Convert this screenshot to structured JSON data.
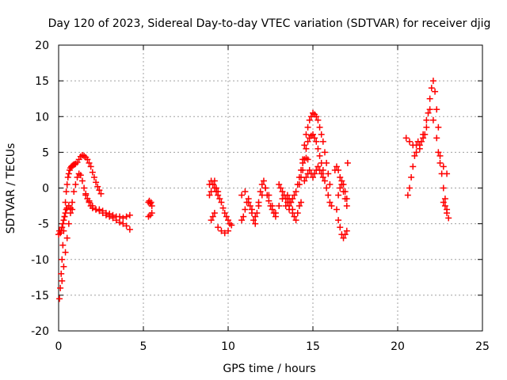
{
  "chart_data": {
    "type": "scatter",
    "title": "Day 120 of 2023, Sidereal Day-to-day VTEC variation (SDTVAR) for receiver djig",
    "xlabel": "GPS time / hours",
    "ylabel": "SDTVAR / TECUs",
    "xlim": [
      0,
      25
    ],
    "ylim": [
      -20,
      20
    ],
    "xticks": [
      0,
      5,
      10,
      15,
      20,
      25
    ],
    "yticks": [
      -20,
      -15,
      -10,
      -5,
      0,
      5,
      10,
      15,
      20
    ],
    "grid": true,
    "marker": "+",
    "series": [
      {
        "name": "SDTVAR",
        "color": "#ff0000",
        "segments": [
          {
            "x": [
              0.0,
              0.05,
              0.1,
              0.15,
              0.2,
              0.25,
              0.3,
              0.35,
              0.4,
              0.45,
              0.5,
              0.55,
              0.6,
              0.65,
              0.7,
              0.75,
              0.8,
              0.85,
              0.9,
              0.95,
              1.0,
              1.1,
              1.2,
              1.3,
              1.4,
              1.5,
              1.6,
              1.7,
              1.8,
              1.9,
              2.0,
              2.1,
              2.2,
              2.3,
              2.4,
              2.5
            ],
            "y": [
              -6.5,
              -15.5,
              -14.0,
              -12.0,
              -10.0,
              -8.0,
              -6.0,
              -4.0,
              -2.0,
              -0.5,
              0.5,
              1.5,
              2.0,
              2.5,
              2.8,
              3.0,
              3.1,
              3.2,
              3.3,
              3.3,
              3.4,
              3.6,
              4.0,
              4.4,
              4.6,
              4.5,
              4.3,
              4.0,
              3.5,
              3.0,
              2.2,
              1.5,
              0.8,
              0.2,
              -0.3,
              -0.8
            ]
          },
          {
            "x": [
              0.2,
              0.3,
              0.4,
              0.5,
              0.6,
              0.7,
              0.8,
              0.9,
              1.0,
              1.1,
              1.2,
              1.3,
              1.4,
              1.5,
              1.6,
              1.7,
              1.8,
              1.9,
              2.0,
              2.2,
              2.4,
              2.6,
              2.8,
              3.0,
              3.2,
              3.4,
              3.6,
              3.8,
              4.0,
              4.2
            ],
            "y": [
              -13.0,
              -11.0,
              -9.0,
              -7.0,
              -5.0,
              -3.5,
              -2.0,
              -0.5,
              0.5,
              1.5,
              2.0,
              1.8,
              1.0,
              0.0,
              -0.8,
              -1.5,
              -2.0,
              -2.5,
              -2.8,
              -3.0,
              -3.2,
              -3.5,
              -3.8,
              -4.0,
              -4.2,
              -4.5,
              -4.8,
              -5.0,
              -5.3,
              -5.8
            ]
          },
          {
            "x": [
              0.05,
              0.1,
              0.15,
              0.2,
              0.25,
              0.3,
              0.35,
              0.4,
              0.45,
              0.5,
              0.6,
              0.7,
              0.8
            ],
            "y": [
              -6.0,
              -6.3,
              -6.0,
              -5.5,
              -5.0,
              -4.5,
              -4.0,
              -3.5,
              -3.0,
              -2.8,
              -2.5,
              -2.8,
              -3.0
            ]
          },
          {
            "x": [
              1.6,
              1.8,
              2.0,
              2.2,
              2.4,
              2.6,
              2.8,
              3.0,
              3.2,
              3.4,
              3.6,
              3.8,
              4.0,
              4.2
            ],
            "y": [
              -1.0,
              -1.8,
              -2.5,
              -3.0,
              -3.0,
              -3.2,
              -3.5,
              -3.6,
              -3.8,
              -4.0,
              -4.0,
              -4.2,
              -4.0,
              -3.8
            ]
          },
          {
            "x": [
              5.3,
              5.35,
              5.4,
              5.45,
              5.5,
              5.3,
              5.4,
              5.5
            ],
            "y": [
              -2.0,
              -1.8,
              -2.2,
              -2.0,
              -2.5,
              -4.0,
              -3.8,
              -3.5
            ]
          },
          {
            "x": [
              8.9,
              9.0,
              9.1,
              9.2,
              9.3,
              9.4,
              9.5,
              9.6,
              9.7,
              9.8,
              9.9,
              10.0,
              10.1,
              10.2,
              9.0,
              9.1,
              9.2,
              9.4,
              9.6,
              9.8,
              10.0
            ],
            "y": [
              0.5,
              1.0,
              0.5,
              0.0,
              -0.5,
              -1.0,
              -1.5,
              -2.0,
              -2.8,
              -3.5,
              -4.0,
              -4.5,
              -5.0,
              -5.2,
              -4.5,
              -4.0,
              -3.5,
              -5.5,
              -6.0,
              -6.3,
              -6.0
            ]
          },
          {
            "x": [
              8.9,
              9.0,
              9.1,
              9.2,
              9.3,
              9.4
            ],
            "y": [
              -1.0,
              -0.5,
              0.5,
              1.0,
              0.0,
              -0.5
            ]
          },
          {
            "x": [
              10.8,
              10.9,
              11.0,
              11.1,
              11.2,
              11.3,
              11.4,
              11.5,
              11.6,
              11.7,
              11.8,
              11.9,
              12.0,
              12.1,
              12.2,
              12.3,
              12.4,
              12.5,
              12.6,
              12.7,
              12.8
            ],
            "y": [
              -4.5,
              -4.0,
              -3.0,
              -2.0,
              -1.5,
              -2.5,
              -3.5,
              -4.5,
              -5.0,
              -3.5,
              -2.0,
              -0.5,
              0.5,
              1.0,
              0.0,
              -1.0,
              -1.8,
              -2.5,
              -3.0,
              -3.5,
              -4.0
            ]
          },
          {
            "x": [
              10.8,
              11.0,
              11.2,
              11.4,
              11.6,
              11.8,
              12.0,
              12.2,
              12.4,
              12.6,
              12.8,
              13.0,
              13.2,
              13.4,
              13.6,
              13.8
            ],
            "y": [
              -1.0,
              -0.5,
              -2.0,
              -3.0,
              -4.0,
              -2.5,
              -1.0,
              0.0,
              -1.0,
              -2.5,
              -3.5,
              -2.5,
              -1.5,
              -2.5,
              -3.0,
              -3.5
            ]
          },
          {
            "x": [
              13.0,
              13.1,
              13.2,
              13.3,
              13.4,
              13.5,
              13.6,
              13.7,
              13.8,
              13.9,
              14.0,
              14.1,
              14.2,
              14.3,
              14.4,
              14.5,
              14.6,
              14.7
            ],
            "y": [
              0.5,
              0.0,
              -0.5,
              -1.0,
              -1.5,
              -2.0,
              -2.5,
              -2.0,
              -1.5,
              -1.0,
              -0.5,
              0.5,
              1.5,
              2.5,
              3.5,
              4.0,
              4.2,
              4.0
            ]
          },
          {
            "x": [
              13.5,
              13.6,
              13.7,
              13.8,
              13.9,
              14.0,
              14.1,
              14.2,
              14.3
            ],
            "y": [
              -1.0,
              -1.5,
              -2.0,
              -3.0,
              -4.0,
              -4.5,
              -3.5,
              -2.5,
              -2.0
            ]
          },
          {
            "x": [
              14.4,
              14.5,
              14.6,
              14.7,
              14.8,
              14.9,
              15.0,
              15.1,
              15.2,
              15.3,
              15.4,
              15.5,
              15.6,
              15.7,
              15.8,
              15.9,
              16.0
            ],
            "y": [
              4.0,
              6.0,
              7.5,
              8.5,
              9.5,
              10.0,
              10.5,
              10.3,
              10.0,
              9.5,
              8.5,
              7.5,
              6.5,
              5.0,
              3.5,
              2.0,
              0.5
            ]
          },
          {
            "x": [
              14.2,
              14.3,
              14.4,
              14.5,
              14.6,
              14.7,
              14.8,
              14.9,
              15.0,
              15.1,
              15.2,
              15.3,
              15.4,
              15.5,
              15.6,
              15.7,
              15.8,
              15.9,
              16.0,
              16.1
            ],
            "y": [
              0.5,
              1.5,
              2.5,
              4.0,
              5.5,
              6.5,
              7.0,
              7.3,
              7.5,
              7.0,
              6.5,
              5.5,
              4.5,
              3.5,
              2.5,
              1.0,
              0.0,
              -1.0,
              -2.0,
              -2.5
            ]
          },
          {
            "x": [
              14.5,
              14.6,
              14.7,
              14.8,
              14.9,
              15.0,
              15.1,
              15.2,
              15.3,
              15.4,
              15.5,
              15.6
            ],
            "y": [
              1.0,
              1.5,
              2.0,
              2.5,
              2.0,
              1.5,
              2.0,
              2.5,
              3.0,
              2.5,
              2.0,
              1.5
            ]
          },
          {
            "x": [
              16.3,
              16.4,
              16.5,
              16.6,
              16.7,
              16.8,
              16.9,
              17.0,
              17.05,
              16.4,
              16.5,
              16.6,
              16.7,
              16.8,
              16.9,
              17.0
            ],
            "y": [
              2.5,
              3.0,
              2.5,
              1.5,
              0.5,
              -0.5,
              -1.5,
              -2.5,
              3.5,
              -3.0,
              -4.5,
              -5.5,
              -6.5,
              -7.0,
              -6.5,
              -6.0
            ]
          },
          {
            "x": [
              16.5,
              16.6,
              16.7,
              16.8,
              16.9,
              17.0
            ],
            "y": [
              -1.0,
              0.0,
              1.0,
              0.5,
              -0.5,
              -1.5
            ]
          },
          {
            "x": [
              20.6,
              20.7,
              20.8,
              20.9,
              21.0,
              21.1,
              21.2,
              21.3,
              21.4,
              21.5,
              21.6,
              21.7,
              21.8,
              21.9,
              22.0,
              22.1,
              22.2,
              22.3,
              22.4
            ],
            "y": [
              -1.0,
              0.0,
              1.5,
              3.0,
              4.5,
              6.0,
              6.5,
              6.0,
              6.5,
              7.0,
              7.5,
              8.5,
              10.5,
              12.5,
              14.0,
              15.0,
              13.5,
              11.0,
              8.5
            ]
          },
          {
            "x": [
              20.5,
              20.7,
              20.9,
              21.1,
              21.3,
              21.5,
              21.7,
              21.9,
              22.1,
              22.3,
              22.5,
              22.7,
              22.9
            ],
            "y": [
              7.0,
              6.5,
              6.0,
              5.0,
              5.5,
              7.5,
              9.5,
              11.0,
              9.5,
              7.0,
              4.5,
              3.0,
              2.0
            ]
          },
          {
            "x": [
              22.4,
              22.5,
              22.6,
              22.7,
              22.8,
              22.9,
              23.0,
              22.7,
              22.8,
              22.9
            ],
            "y": [
              5.0,
              3.5,
              2.0,
              0.0,
              -1.5,
              -3.0,
              -4.2,
              -2.0,
              -2.5,
              -3.5
            ]
          }
        ]
      }
    ]
  }
}
